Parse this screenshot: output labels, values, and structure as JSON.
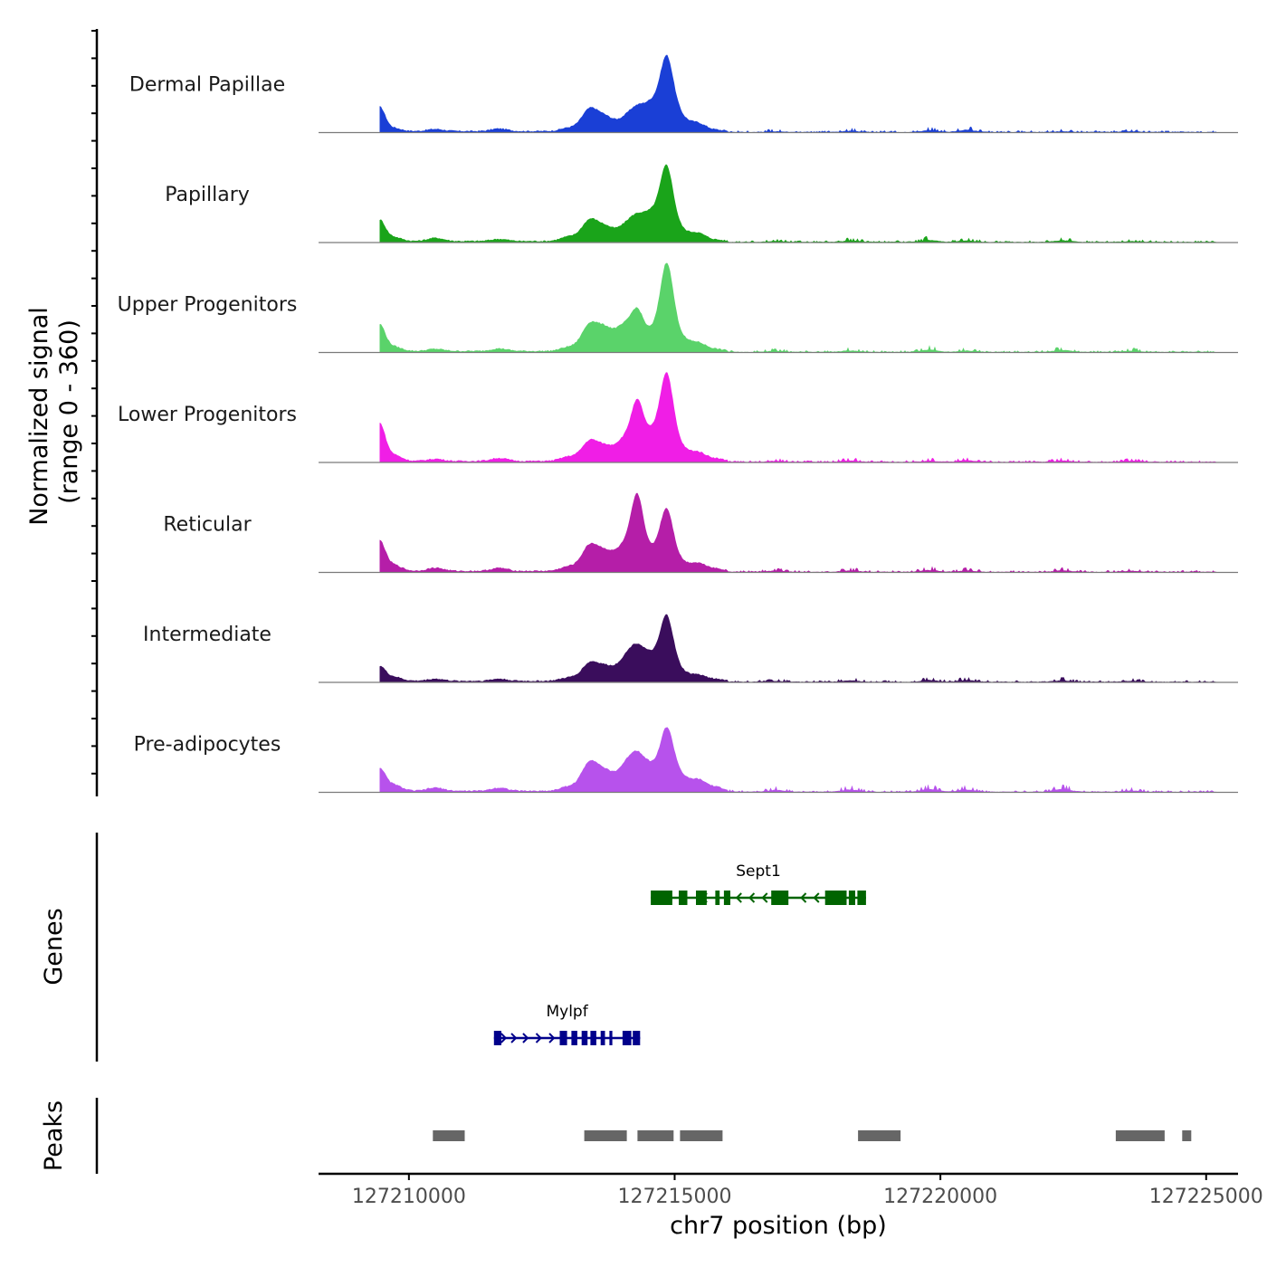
{
  "chart_data": {
    "type": "area",
    "title": "",
    "ylabel": "Normalized signal",
    "ylabel_range": "(range 0 - 360)",
    "ylim": [
      0,
      360
    ],
    "xlabel": "chr7 position (bp)",
    "xlim": [
      127208300,
      127225600
    ],
    "x_ticks": [
      127210000,
      127215000,
      127220000,
      127225000
    ],
    "x_tick_labels": [
      "127210000",
      "127215000",
      "127220000",
      "127225000"
    ],
    "peak_positions": [
      127209450,
      127209700,
      127210500,
      127211700,
      127213000,
      127213400,
      127213700,
      127214050,
      127214300,
      127214600,
      127214850,
      127215050,
      127215400,
      127215500,
      127215800,
      127216900,
      127218300,
      127219800,
      127220500,
      127222300,
      127223600
    ],
    "series": [
      {
        "name": "Dermal Papillae",
        "color": "#1a3fd6",
        "values": [
          110,
          15,
          10,
          12,
          15,
          100,
          60,
          45,
          95,
          120,
          290,
          80,
          30,
          10,
          5,
          8,
          12,
          18,
          25,
          8,
          6
        ]
      },
      {
        "name": "Papillary",
        "color": "#1aa41a",
        "values": [
          95,
          20,
          15,
          10,
          20,
          95,
          60,
          55,
          100,
          120,
          300,
          60,
          30,
          10,
          5,
          8,
          15,
          22,
          15,
          18,
          8
        ]
      },
      {
        "name": "Upper Progenitors",
        "color": "#5ad36a",
        "values": [
          120,
          22,
          10,
          12,
          18,
          120,
          95,
          110,
          160,
          90,
          360,
          75,
          30,
          12,
          8,
          10,
          15,
          25,
          15,
          20,
          12
        ]
      },
      {
        "name": "Lower Progenitors",
        "color": "#f01ee6",
        "values": [
          170,
          30,
          10,
          14,
          20,
          90,
          60,
          95,
          245,
          130,
          350,
          75,
          30,
          14,
          10,
          12,
          15,
          12,
          18,
          15,
          12
        ]
      },
      {
        "name": "Reticular",
        "color": "#b51ea8",
        "values": [
          135,
          30,
          15,
          14,
          20,
          115,
          80,
          110,
          320,
          90,
          250,
          50,
          25,
          14,
          10,
          12,
          15,
          20,
          15,
          15,
          12
        ]
      },
      {
        "name": "Intermediate",
        "color": "#3a0d5c",
        "values": [
          65,
          20,
          10,
          10,
          15,
          80,
          60,
          80,
          140,
          100,
          260,
          55,
          20,
          10,
          8,
          10,
          15,
          20,
          18,
          15,
          10
        ]
      },
      {
        "name": "Pre-adipocytes",
        "color": "#b752ec",
        "values": [
          100,
          30,
          15,
          15,
          20,
          130,
          80,
          90,
          150,
          95,
          240,
          80,
          35,
          20,
          15,
          20,
          25,
          30,
          25,
          30,
          15
        ]
      }
    ],
    "genes": [
      {
        "name": "Sept1",
        "start": 127214550,
        "end": 127218600,
        "strand": "-",
        "color": "#006400"
      },
      {
        "name": "Mylpf",
        "start": 127211600,
        "end": 127214350,
        "strand": "+",
        "color": "#00008b"
      }
    ],
    "genes_label": "Genes",
    "peaks_label": "Peaks",
    "peak_regions": [
      [
        127210450,
        127211050
      ],
      [
        127213300,
        127214100
      ],
      [
        127214300,
        127214980
      ],
      [
        127215100,
        127215900
      ],
      [
        127218450,
        127219250
      ],
      [
        127223300,
        127224220
      ],
      [
        127224550,
        127224720
      ]
    ]
  }
}
